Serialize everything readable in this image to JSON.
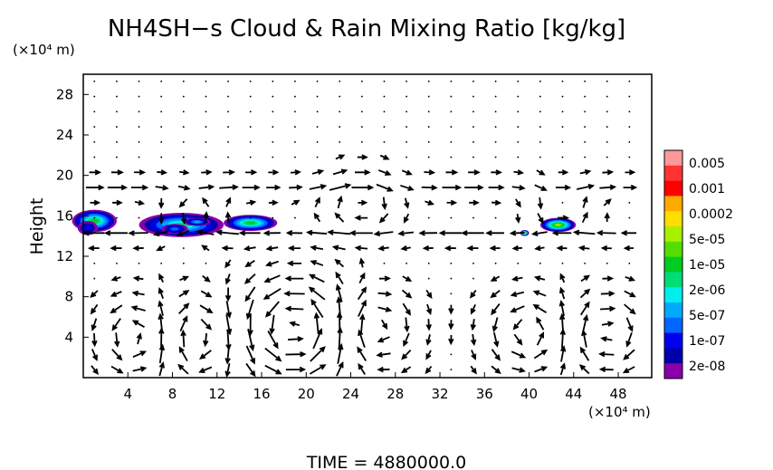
{
  "chart_data": {
    "type": "heatmap",
    "title": "NH4SH−s Cloud & Rain Mixing Ratio [kg/kg]",
    "xlabel": "",
    "ylabel": "Height",
    "x_unit_label": "(×10⁴ m)",
    "y_unit_label": "(×10⁴ m)",
    "xlim": [
      0,
      51
    ],
    "ylim": [
      0,
      30
    ],
    "x_ticks": [
      "4",
      "8",
      "12",
      "16",
      "20",
      "24",
      "28",
      "32",
      "36",
      "40",
      "44",
      "48"
    ],
    "y_ticks": [
      "4",
      "8",
      "12",
      "16",
      "20",
      "24",
      "28"
    ],
    "time_label": "TIME  =  4880000.0",
    "colorbar": {
      "labels": [
        "0.005",
        "0.001",
        "0.0002",
        "5e-05",
        "1e-05",
        "2e-06",
        "5e-07",
        "1e-07",
        "2e-08"
      ],
      "colors": [
        "#ff9999",
        "#ff3333",
        "#ff0000",
        "#ffaa00",
        "#ffdd00",
        "#aaee00",
        "#55dd00",
        "#00cc22",
        "#00dd77",
        "#00eeee",
        "#00aaff",
        "#0066ff",
        "#0000ee",
        "#0000aa",
        "#8800aa"
      ]
    },
    "cloud_regions": [
      {
        "x": 1.0,
        "y": 15.5,
        "rx": 2.0,
        "ry": 1.1,
        "level": 7
      },
      {
        "x": 0.4,
        "y": 14.8,
        "rx": 0.9,
        "ry": 0.7,
        "level": 2
      },
      {
        "x": 8.8,
        "y": 15.1,
        "rx": 3.8,
        "ry": 1.2,
        "level": 6
      },
      {
        "x": 8.2,
        "y": 14.7,
        "rx": 1.2,
        "ry": 0.5,
        "level": 3
      },
      {
        "x": 10.2,
        "y": 15.4,
        "rx": 1.2,
        "ry": 0.4,
        "level": 4
      },
      {
        "x": 15.0,
        "y": 15.3,
        "rx": 2.4,
        "ry": 0.8,
        "level": 7
      },
      {
        "x": 42.6,
        "y": 15.1,
        "rx": 1.6,
        "ry": 0.7,
        "level": 9
      },
      {
        "x": 39.6,
        "y": 14.3,
        "rx": 0.4,
        "ry": 0.3,
        "level": 10
      }
    ],
    "flow": {
      "x_spacing": 2.0,
      "y_spacing": 1.5,
      "vortices": [
        {
          "x": 5,
          "y": 4,
          "strength": 1.0,
          "radius": 3.5
        },
        {
          "x": 10,
          "y": 4,
          "strength": -1.0,
          "radius": 3.5
        },
        {
          "x": 19,
          "y": 5,
          "strength": 1.4,
          "radius": 4.5
        },
        {
          "x": 26,
          "y": 5,
          "strength": -1.0,
          "radius": 3.5
        },
        {
          "x": 40,
          "y": 4.5,
          "strength": 1.0,
          "radius": 3.5
        },
        {
          "x": 47,
          "y": 4.5,
          "strength": -1.0,
          "radius": 3.5
        },
        {
          "x": 10,
          "y": 16,
          "strength": 0.7,
          "radius": 2.5
        },
        {
          "x": 25,
          "y": 17.5,
          "strength": -0.7,
          "radius": 3.0
        },
        {
          "x": 43,
          "y": 17,
          "strength": 0.7,
          "radius": 2.5
        }
      ],
      "jets": [
        {
          "y": 14,
          "width": 0.9,
          "u": -1.3
        },
        {
          "y": 19,
          "width": 1.2,
          "u": 0.9
        }
      ]
    }
  }
}
